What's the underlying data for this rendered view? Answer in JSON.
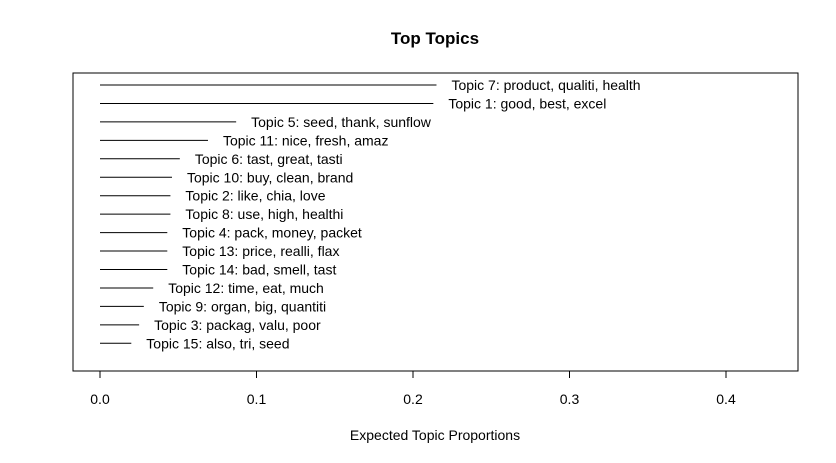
{
  "chart_data": {
    "type": "bar",
    "title": "Top Topics",
    "xlabel": "Expected Topic Proportions",
    "ylabel": "",
    "xlim": [
      -0.017,
      0.446
    ],
    "x_ticks": [
      0.0,
      0.1,
      0.2,
      0.3,
      0.4
    ],
    "x_tick_labels": [
      "0.0",
      "0.1",
      "0.2",
      "0.3",
      "0.4"
    ],
    "grid": false,
    "legend": "none",
    "categories": [
      "Topic 7: product, qualiti, health",
      "Topic 1: good, best, excel",
      "Topic 5: seed, thank, sunflow",
      "Topic 11: nice, fresh, amaz",
      "Topic 6: tast, great, tasti",
      "Topic 10: buy, clean, brand",
      "Topic 2: like, chia, love",
      "Topic 8: use, high, healthi",
      "Topic 4: pack, money, packet",
      "Topic 13: price, realli, flax",
      "Topic 14: bad, smell, tast",
      "Topic 12: time, eat, much",
      "Topic 9: organ, big, quantiti",
      "Topic 3: packag, valu, poor",
      "Topic 15: also, tri, seed"
    ],
    "values": [
      0.215,
      0.213,
      0.087,
      0.069,
      0.051,
      0.046,
      0.045,
      0.045,
      0.043,
      0.043,
      0.043,
      0.034,
      0.028,
      0.025,
      0.02
    ],
    "colors": {
      "line": "#000000",
      "frame": "#000000",
      "background": "#ffffff"
    }
  }
}
